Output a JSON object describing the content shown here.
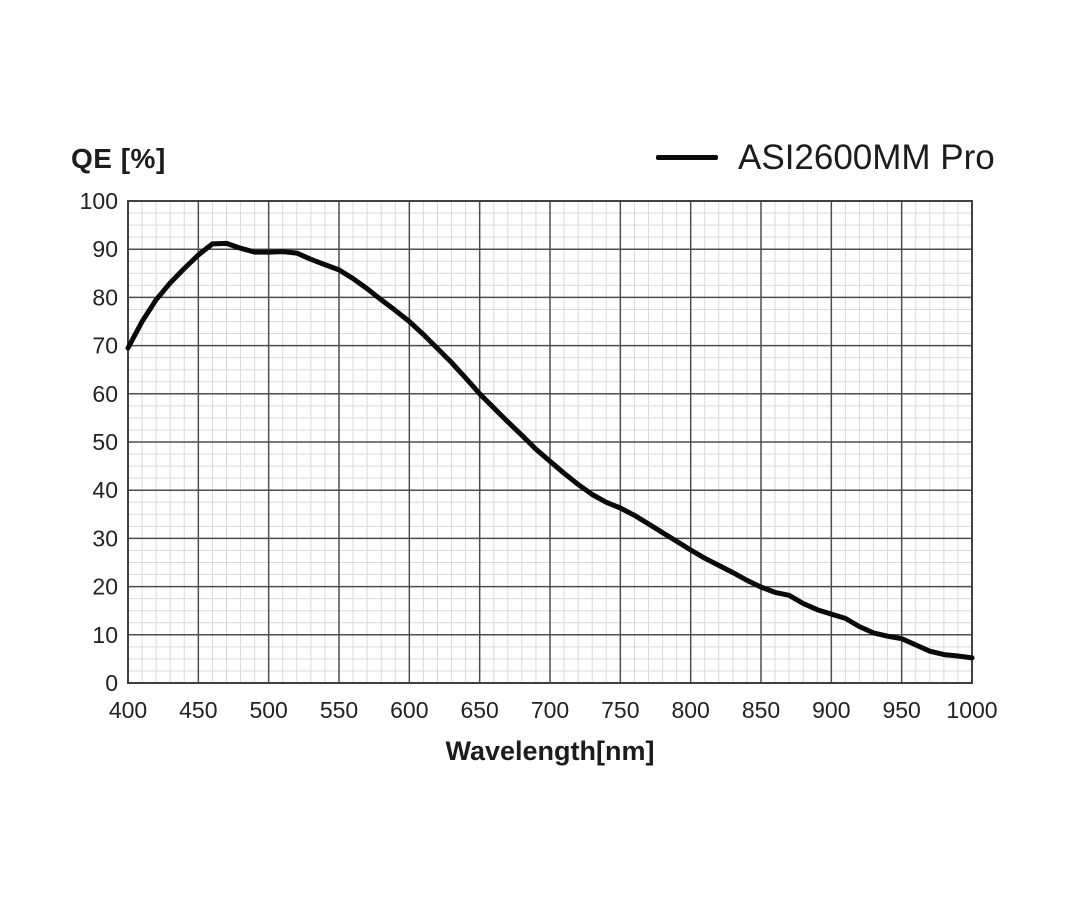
{
  "page": {
    "background": "#ffffff"
  },
  "y_axis_title": "QE [%]",
  "x_axis_title": "Wavelength[nm]",
  "legend": {
    "label": "ASI2600MM Pro",
    "line_color": "#0a0a0a",
    "position": "top-right"
  },
  "style": {
    "curve_color": "#0a0a0a",
    "major_grid_color": "#4d4d4d",
    "minor_grid_color": "#d9d9d9",
    "border_color": "#404040",
    "text_color": "#222222"
  },
  "chart_data": {
    "type": "line",
    "title": "",
    "xlabel": "Wavelength[nm]",
    "ylabel": "QE [%]",
    "xlim": [
      400,
      1000
    ],
    "ylim": [
      0,
      100
    ],
    "x_major_ticks": [
      400,
      450,
      500,
      550,
      600,
      650,
      700,
      750,
      800,
      850,
      900,
      950,
      1000
    ],
    "y_major_ticks": [
      0,
      10,
      20,
      30,
      40,
      50,
      60,
      70,
      80,
      90,
      100
    ],
    "x_minor_step": 10,
    "y_minor_step": 2.5,
    "grid": "major+minor",
    "legend_position": "top-right",
    "series": [
      {
        "name": "ASI2600MM Pro",
        "color": "#0a0a0a",
        "x": [
          400,
          410,
          420,
          430,
          440,
          450,
          460,
          470,
          480,
          490,
          500,
          510,
          520,
          530,
          540,
          550,
          560,
          570,
          580,
          590,
          600,
          610,
          620,
          630,
          640,
          650,
          660,
          670,
          680,
          690,
          700,
          710,
          720,
          730,
          740,
          750,
          760,
          770,
          780,
          790,
          800,
          810,
          820,
          830,
          840,
          850,
          860,
          870,
          880,
          890,
          900,
          910,
          920,
          930,
          940,
          950,
          960,
          970,
          980,
          990,
          1000
        ],
        "y": [
          69.5,
          75.0,
          79.5,
          83.0,
          86.0,
          88.8,
          91.1,
          91.2,
          90.2,
          89.4,
          89.4,
          89.5,
          89.2,
          87.9,
          86.8,
          85.7,
          83.9,
          81.8,
          79.5,
          77.3,
          75.0,
          72.3,
          69.4,
          66.5,
          63.3,
          60.0,
          57.1,
          54.2,
          51.4,
          48.5,
          46.0,
          43.5,
          41.2,
          39.1,
          37.5,
          36.3,
          34.8,
          33.0,
          31.2,
          29.4,
          27.6,
          25.9,
          24.4,
          22.9,
          21.3,
          19.9,
          18.8,
          18.2,
          16.5,
          15.2,
          14.3,
          13.4,
          11.7,
          10.4,
          9.7,
          9.2,
          7.9,
          6.6,
          5.9,
          5.6,
          5.2
        ]
      }
    ]
  }
}
